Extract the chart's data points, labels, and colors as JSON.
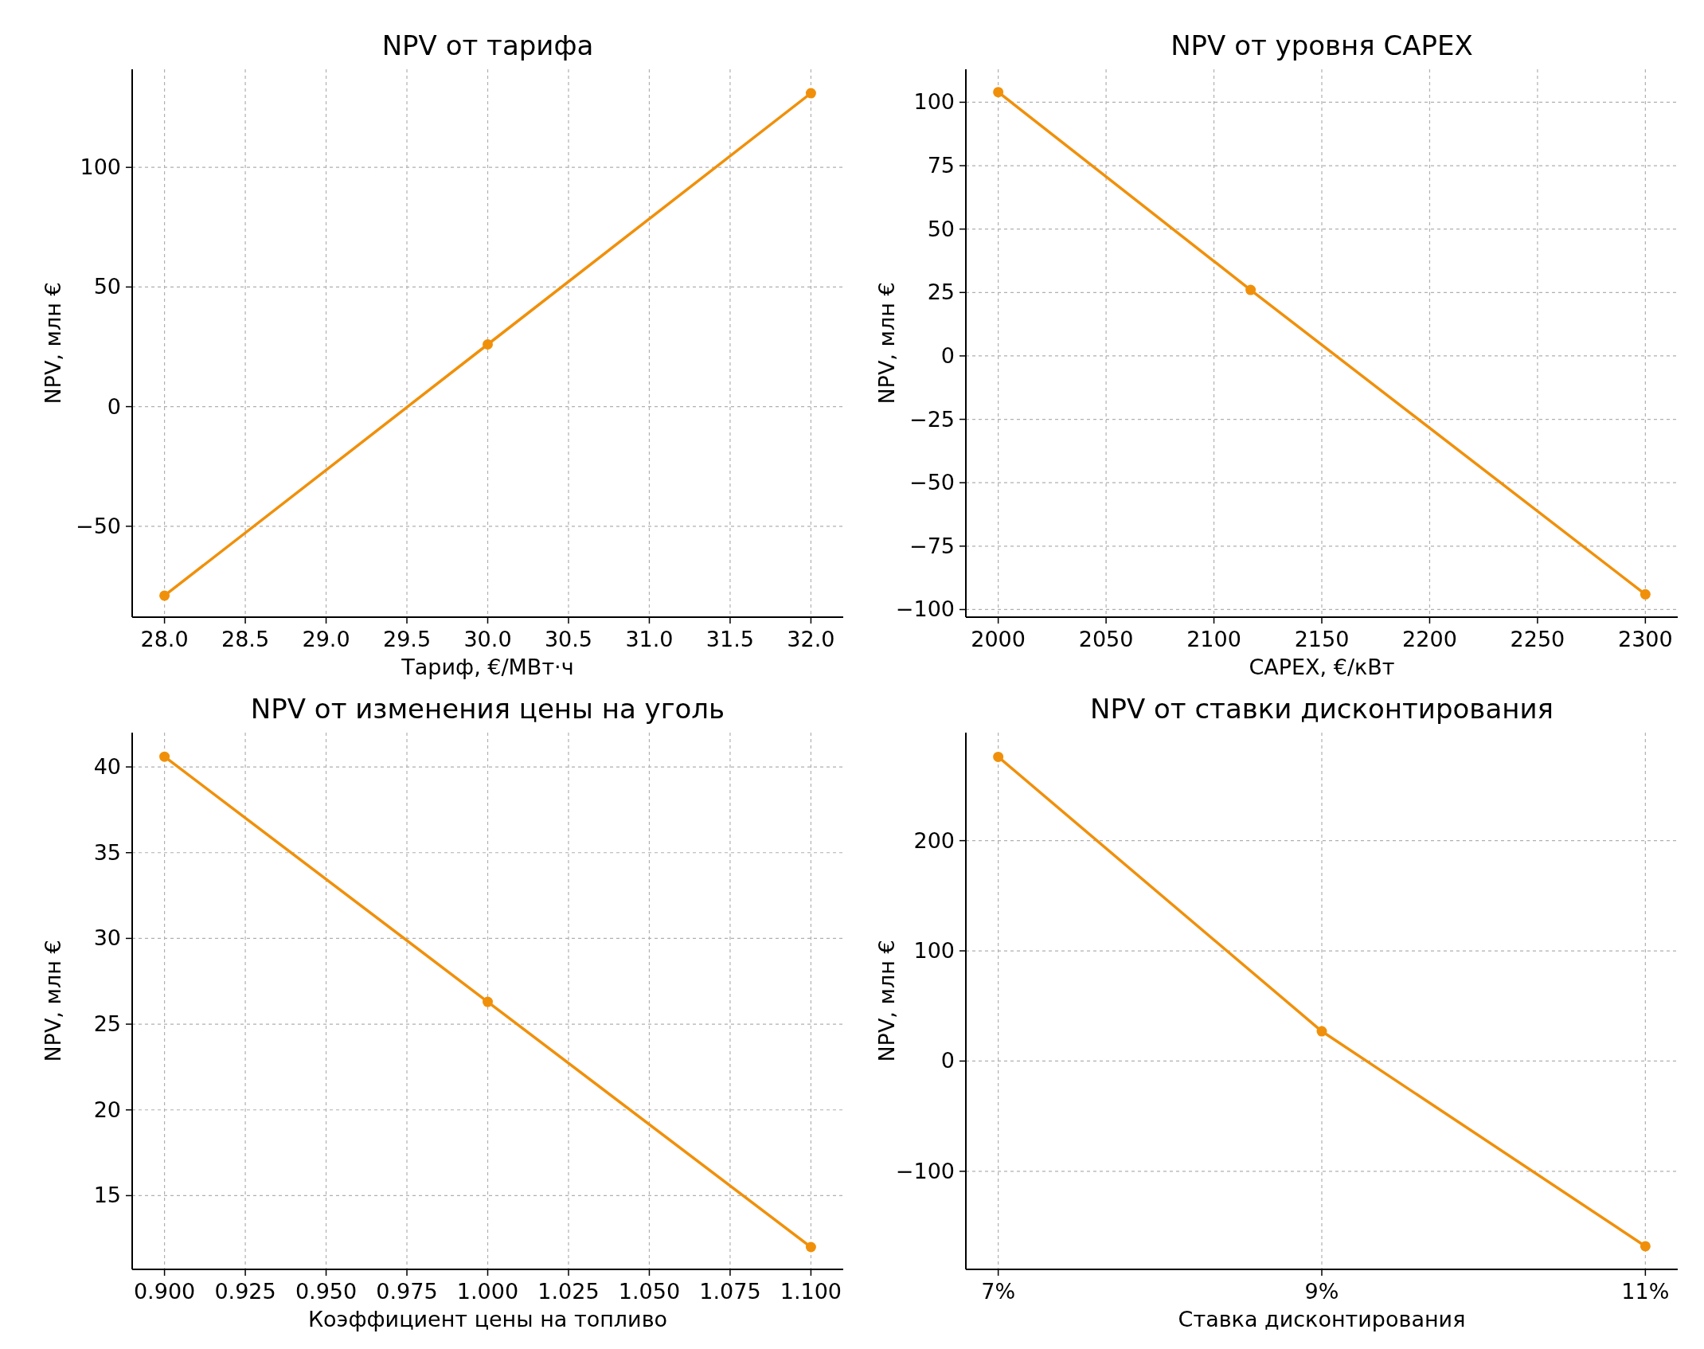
{
  "chart_data": [
    {
      "type": "line",
      "title": "NPV от тарифа",
      "xlabel": "Тариф, €/МВт·ч",
      "ylabel": "NPV, млн €",
      "x": [
        28,
        30,
        32
      ],
      "xlim": [
        27.8,
        32.2
      ],
      "xticks": [
        {
          "value": 28,
          "label": "28.0"
        },
        {
          "value": 28.5,
          "label": "28.5"
        },
        {
          "value": 29,
          "label": "29.0"
        },
        {
          "value": 29.5,
          "label": "29.5"
        },
        {
          "value": 30,
          "label": "30.0"
        },
        {
          "value": 30.5,
          "label": "30.5"
        },
        {
          "value": 31,
          "label": "31.0"
        },
        {
          "value": 31.5,
          "label": "31.5"
        },
        {
          "value": 32,
          "label": "32.0"
        }
      ],
      "ylim": [
        -88,
        141
      ],
      "yticks": [
        {
          "value": -50,
          "label": "−50"
        },
        0,
        50,
        100
      ],
      "grid": true,
      "marker": "circle",
      "series": [
        {
          "color": "#f0900a",
          "values": [
            -79,
            26,
            131
          ]
        }
      ]
    },
    {
      "type": "line",
      "title": "NPV от уровня CAPEX",
      "xlabel": "CAPEX, €/кВт",
      "ylabel": "NPV, млн €",
      "x": [
        2000,
        2117,
        2300
      ],
      "xlim": [
        1985,
        2315
      ],
      "xticks": [
        2000,
        2050,
        2100,
        2150,
        2200,
        2250,
        2300
      ],
      "ylim": [
        -103,
        113
      ],
      "yticks": [
        {
          "value": -100,
          "label": "−100"
        },
        {
          "value": -75,
          "label": "−75"
        },
        {
          "value": -50,
          "label": "−50"
        },
        {
          "value": -25,
          "label": "−25"
        },
        0,
        25,
        50,
        75,
        100
      ],
      "grid": true,
      "marker": "circle",
      "series": [
        {
          "color": "#f0900a",
          "values": [
            104,
            26,
            -94
          ]
        }
      ]
    },
    {
      "type": "line",
      "title": "NPV от изменения цены на уголь",
      "xlabel": "Коэффициент цены на топливо",
      "ylabel": "NPV, млн €",
      "x": [
        0.9,
        1.0,
        1.1
      ],
      "xlim": [
        0.89,
        1.11
      ],
      "xticks": [
        {
          "value": 0.9,
          "label": "0.900"
        },
        {
          "value": 0.925,
          "label": "0.925"
        },
        {
          "value": 0.95,
          "label": "0.950"
        },
        {
          "value": 0.975,
          "label": "0.975"
        },
        {
          "value": 1,
          "label": "1.000"
        },
        {
          "value": 1.025,
          "label": "1.025"
        },
        {
          "value": 1.05,
          "label": "1.050"
        },
        {
          "value": 1.075,
          "label": "1.075"
        },
        {
          "value": 1.1,
          "label": "1.100"
        }
      ],
      "ylim": [
        10.7,
        42
      ],
      "yticks": [
        15,
        20,
        25,
        30,
        35,
        40
      ],
      "grid": true,
      "marker": "circle",
      "series": [
        {
          "color": "#f0900a",
          "values": [
            40.6,
            26.3,
            12.0
          ]
        }
      ]
    },
    {
      "type": "line",
      "title": "NPV от ставки дисконтирования",
      "xlabel": "Ставка дисконтирования",
      "ylabel": "NPV, млн €",
      "x": [
        7,
        9,
        11
      ],
      "xlim": [
        6.8,
        11.2
      ],
      "xticks": [
        {
          "value": 7,
          "label": "7%"
        },
        {
          "value": 9,
          "label": "9%"
        },
        {
          "value": 11,
          "label": "11%"
        }
      ],
      "ylim": [
        -189,
        298
      ],
      "yticks": [
        {
          "value": -100,
          "label": "−100"
        },
        0,
        100,
        200
      ],
      "grid": true,
      "marker": "circle",
      "series": [
        {
          "color": "#f0900a",
          "values": [
            276,
            27,
            -168
          ]
        }
      ]
    }
  ]
}
